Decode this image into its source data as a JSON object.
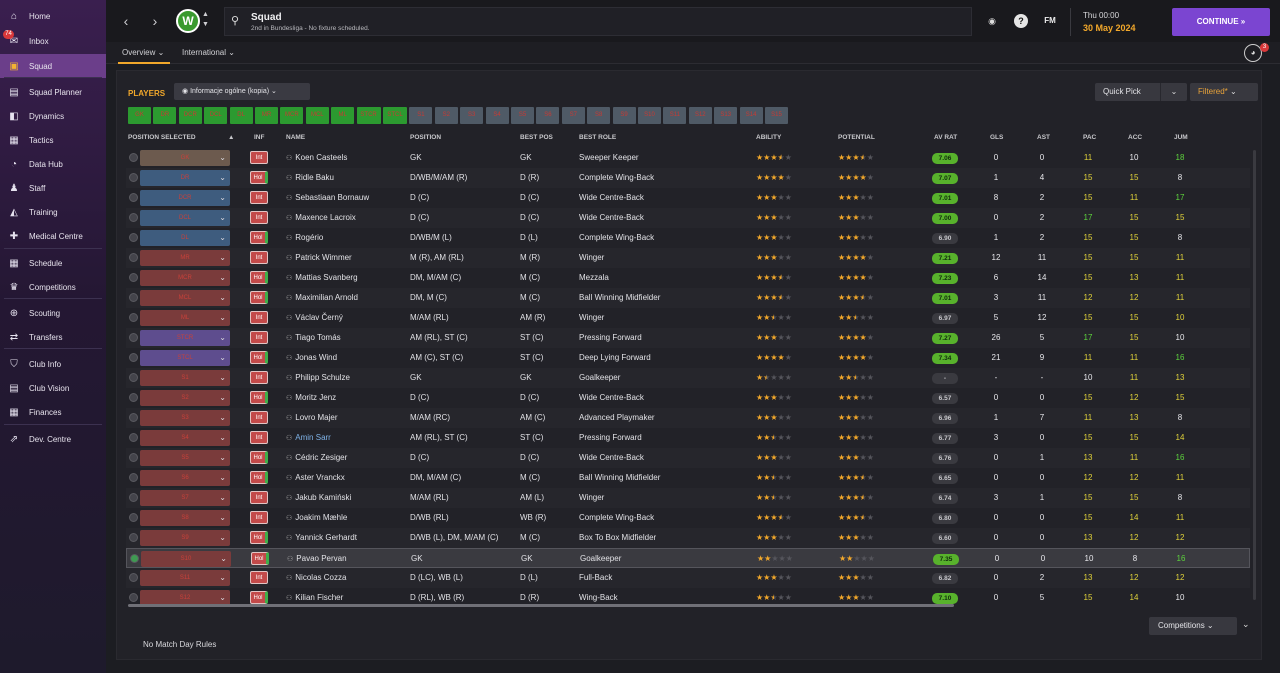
{
  "sidebar": {
    "items": [
      {
        "label": "Home",
        "icon": "home-icon",
        "glyph": "⌂"
      },
      {
        "label": "Inbox",
        "icon": "inbox-icon",
        "glyph": "✉",
        "badge": "74"
      },
      {
        "label": "Squad",
        "icon": "shirt-icon",
        "glyph": "▣",
        "active": true
      },
      {
        "label": "Squad Planner",
        "icon": "clipboard-icon",
        "glyph": "▤"
      },
      {
        "label": "Dynamics",
        "icon": "dynamics-icon",
        "glyph": "◧"
      },
      {
        "label": "Tactics",
        "icon": "tactics-icon",
        "glyph": "▦"
      },
      {
        "label": "Data Hub",
        "icon": "data-hub-icon",
        "glyph": "◔"
      },
      {
        "label": "Staff",
        "icon": "staff-icon",
        "glyph": "♟"
      },
      {
        "label": "Training",
        "icon": "training-icon",
        "glyph": "◭"
      },
      {
        "label": "Medical Centre",
        "icon": "medical-icon",
        "glyph": "✚"
      },
      {
        "label": "Schedule",
        "icon": "calendar-icon",
        "glyph": "▦"
      },
      {
        "label": "Competitions",
        "icon": "trophy-icon",
        "glyph": "♛"
      },
      {
        "label": "Scouting",
        "icon": "scouting-icon",
        "glyph": "⊕"
      },
      {
        "label": "Transfers",
        "icon": "transfers-icon",
        "glyph": "⇄"
      },
      {
        "label": "Club Info",
        "icon": "shield-icon",
        "glyph": "⛉"
      },
      {
        "label": "Club Vision",
        "icon": "vision-icon",
        "glyph": "▤"
      },
      {
        "label": "Finances",
        "icon": "finances-icon",
        "glyph": "▦"
      },
      {
        "label": "Dev. Centre",
        "icon": "dev-centre-icon",
        "glyph": "⇗"
      }
    ]
  },
  "header": {
    "title": "Squad",
    "subtitle": "2nd in Bundesliga - No fixture scheduled.",
    "club_initial": "W",
    "time": "Thu 00:00",
    "date": "30 May 2024",
    "continue": "CONTINUE",
    "fm": "FM",
    "help": "?",
    "notif_count": "3"
  },
  "tabs": {
    "overview": "Overview",
    "international": "International"
  },
  "controls": {
    "players": "PLAYERS",
    "view": "Informacje ogólne (kopia)",
    "quick_pick": "Quick Pick",
    "filtered": "Filtered*",
    "competitions": "Competitions",
    "no_match": "No Match Day Rules"
  },
  "position_chips": [
    {
      "label": "GK",
      "on": true
    },
    {
      "label": "DR",
      "on": true
    },
    {
      "label": "DCR",
      "on": true
    },
    {
      "label": "DCL",
      "on": true
    },
    {
      "label": "DL",
      "on": true
    },
    {
      "label": "MR",
      "on": true
    },
    {
      "label": "MCR",
      "on": true
    },
    {
      "label": "MCL",
      "on": true
    },
    {
      "label": "ML",
      "on": true
    },
    {
      "label": "STCR",
      "on": true
    },
    {
      "label": "STCL",
      "on": true
    },
    {
      "label": "S1",
      "on": false
    },
    {
      "label": "S2",
      "on": false
    },
    {
      "label": "S3",
      "on": false
    },
    {
      "label": "S4",
      "on": false
    },
    {
      "label": "S5",
      "on": false
    },
    {
      "label": "S6",
      "on": false
    },
    {
      "label": "S7",
      "on": false
    },
    {
      "label": "S8",
      "on": false
    },
    {
      "label": "S9",
      "on": false
    },
    {
      "label": "S10",
      "on": false
    },
    {
      "label": "S11",
      "on": false
    },
    {
      "label": "S12",
      "on": false
    },
    {
      "label": "S13",
      "on": false
    },
    {
      "label": "S14",
      "on": false
    },
    {
      "label": "S15",
      "on": false
    }
  ],
  "columns": {
    "pos_sel": "POSITION SELECTED",
    "inf": "INF",
    "name": "NAME",
    "position": "POSITION",
    "best_pos": "BEST POS",
    "best_role": "BEST ROLE",
    "ability": "ABILITY",
    "potential": "POTENTIAL",
    "av_rat": "AV RAT",
    "gls": "GLS",
    "ast": "AST",
    "pac": "PAC",
    "acc": "ACC",
    "jum": "JUM"
  },
  "players": [
    {
      "sel": "GK",
      "selc": "brown",
      "inf": "Int",
      "name": "Koen Casteels",
      "position": "GK",
      "best_pos": "GK",
      "role": "Sweeper Keeper",
      "ability": 3.5,
      "potential": 3.5,
      "av": "7.06",
      "avg": true,
      "gls": "0",
      "ast": "0",
      "pac": "11",
      "acc": "10",
      "jum": "18",
      "pc": "y",
      "ac": "w",
      "jc": "g"
    },
    {
      "sel": "DR",
      "selc": "blue",
      "inf": "Hol",
      "name": "Ridle Baku",
      "position": "D/WB/M/AM (R)",
      "best_pos": "D (R)",
      "role": "Complete Wing-Back",
      "ability": 4,
      "potential": 4,
      "av": "7.07",
      "avg": true,
      "gls": "1",
      "ast": "4",
      "pac": "15",
      "acc": "15",
      "jum": "8",
      "pc": "y",
      "ac": "y",
      "jc": "w"
    },
    {
      "sel": "DCR",
      "selc": "blue",
      "inf": "Int",
      "name": "Sebastiaan Bornauw",
      "position": "D (C)",
      "best_pos": "D (C)",
      "role": "Wide Centre-Back",
      "ability": 3,
      "potential": 3,
      "av": "7.01",
      "avg": true,
      "gls": "8",
      "ast": "2",
      "pac": "15",
      "acc": "11",
      "jum": "17",
      "pc": "y",
      "ac": "y",
      "jc": "g"
    },
    {
      "sel": "DCL",
      "selc": "blue",
      "inf": "Int",
      "name": "Maxence Lacroix",
      "position": "D (C)",
      "best_pos": "D (C)",
      "role": "Wide Centre-Back",
      "ability": 3,
      "potential": 3,
      "av": "7.00",
      "avg": true,
      "gls": "0",
      "ast": "2",
      "pac": "17",
      "acc": "15",
      "jum": "15",
      "pc": "g",
      "ac": "y",
      "jc": "y"
    },
    {
      "sel": "DL",
      "selc": "blue",
      "inf": "Hol",
      "name": "Rogério",
      "position": "D/WB/M (L)",
      "best_pos": "D (L)",
      "role": "Complete Wing-Back",
      "ability": 3,
      "potential": 3,
      "av": "6.90",
      "avg": false,
      "gls": "1",
      "ast": "2",
      "pac": "15",
      "acc": "15",
      "jum": "8",
      "pc": "y",
      "ac": "y",
      "jc": "w"
    },
    {
      "sel": "MR",
      "selc": "red",
      "inf": "Int",
      "name": "Patrick Wimmer",
      "position": "M (R), AM (RL)",
      "best_pos": "M (R)",
      "role": "Winger",
      "ability": 3,
      "potential": 4,
      "av": "7.21",
      "avg": true,
      "gls": "12",
      "ast": "11",
      "pac": "15",
      "acc": "15",
      "jum": "11",
      "pc": "y",
      "ac": "y",
      "jc": "y"
    },
    {
      "sel": "MCR",
      "selc": "red",
      "inf": "Hol",
      "name": "Mattias Svanberg",
      "position": "DM, M/AM (C)",
      "best_pos": "M (C)",
      "role": "Mezzala",
      "ability": 3.5,
      "potential": 4,
      "av": "7.23",
      "avg": true,
      "gls": "6",
      "ast": "14",
      "pac": "15",
      "acc": "13",
      "jum": "11",
      "pc": "y",
      "ac": "y",
      "jc": "y"
    },
    {
      "sel": "MCL",
      "selc": "red",
      "inf": "Hol",
      "name": "Maximilian Arnold",
      "position": "DM, M (C)",
      "best_pos": "M (C)",
      "role": "Ball Winning Midfielder",
      "ability": 3.5,
      "potential": 3.5,
      "av": "7.01",
      "avg": true,
      "gls": "3",
      "ast": "11",
      "pac": "12",
      "acc": "12",
      "jum": "11",
      "pc": "y",
      "ac": "y",
      "jc": "y"
    },
    {
      "sel": "ML",
      "selc": "red",
      "inf": "Int",
      "name": "Václav Černý",
      "position": "M/AM (RL)",
      "best_pos": "AM (R)",
      "role": "Winger",
      "ability": 2.5,
      "potential": 2.5,
      "av": "6.97",
      "avg": false,
      "gls": "5",
      "ast": "12",
      "pac": "15",
      "acc": "15",
      "jum": "10",
      "pc": "y",
      "ac": "y",
      "jc": "y"
    },
    {
      "sel": "STCR",
      "selc": "purple",
      "inf": "Int",
      "name": "Tiago Tomás",
      "position": "AM (RL), ST (C)",
      "best_pos": "ST (C)",
      "role": "Pressing Forward",
      "ability": 3,
      "potential": 4,
      "av": "7.27",
      "avg": true,
      "gls": "26",
      "ast": "5",
      "pac": "17",
      "acc": "15",
      "jum": "10",
      "pc": "g",
      "ac": "y",
      "jc": "w"
    },
    {
      "sel": "STCL",
      "selc": "purple",
      "inf": "Hol",
      "name": "Jonas Wind",
      "position": "AM (C), ST (C)",
      "best_pos": "ST (C)",
      "role": "Deep Lying Forward",
      "ability": 4,
      "potential": 4,
      "av": "7.34",
      "avg": true,
      "gls": "21",
      "ast": "9",
      "pac": "11",
      "acc": "11",
      "jum": "16",
      "pc": "y",
      "ac": "y",
      "jc": "g"
    },
    {
      "sel": "S1",
      "selc": "red",
      "inf": "Int",
      "name": "Philipp Schulze",
      "position": "GK",
      "best_pos": "GK",
      "role": "Goalkeeper",
      "ability": 1.5,
      "potential": 2.5,
      "av": "-",
      "avg": false,
      "gls": "-",
      "ast": "-",
      "pac": "10",
      "acc": "11",
      "jum": "13",
      "pc": "w",
      "ac": "y",
      "jc": "y"
    },
    {
      "sel": "S2",
      "selc": "red",
      "inf": "Hol",
      "name": "Moritz Jenz",
      "position": "D (C)",
      "best_pos": "D (C)",
      "role": "Wide Centre-Back",
      "ability": 3,
      "potential": 3,
      "av": "6.57",
      "avg": false,
      "gls": "0",
      "ast": "0",
      "pac": "15",
      "acc": "12",
      "jum": "15",
      "pc": "y",
      "ac": "y",
      "jc": "y"
    },
    {
      "sel": "S3",
      "selc": "red",
      "inf": "Int",
      "name": "Lovro Majer",
      "position": "M/AM (RC)",
      "best_pos": "AM (C)",
      "role": "Advanced Playmaker",
      "ability": 3,
      "potential": 3,
      "av": "6.96",
      "avg": false,
      "gls": "1",
      "ast": "7",
      "pac": "11",
      "acc": "13",
      "jum": "8",
      "pc": "y",
      "ac": "y",
      "jc": "w"
    },
    {
      "sel": "S4",
      "selc": "red",
      "inf": "Int",
      "name": "Amin Sarr",
      "position": "AM (RL), ST (C)",
      "best_pos": "ST (C)",
      "role": "Pressing Forward",
      "ability": 2.5,
      "potential": 3,
      "av": "6.77",
      "avg": false,
      "gls": "3",
      "ast": "0",
      "pac": "15",
      "acc": "15",
      "jum": "14",
      "pc": "y",
      "ac": "y",
      "jc": "y",
      "loan": true
    },
    {
      "sel": "S5",
      "selc": "red",
      "inf": "Hol",
      "name": "Cédric Zesiger",
      "position": "D (C)",
      "best_pos": "D (C)",
      "role": "Wide Centre-Back",
      "ability": 3,
      "potential": 3,
      "av": "6.76",
      "avg": false,
      "gls": "0",
      "ast": "1",
      "pac": "13",
      "acc": "11",
      "jum": "16",
      "pc": "y",
      "ac": "y",
      "jc": "g"
    },
    {
      "sel": "S6",
      "selc": "red",
      "inf": "Hol",
      "name": "Aster Vranckx",
      "position": "DM, M/AM (C)",
      "best_pos": "M (C)",
      "role": "Ball Winning Midfielder",
      "ability": 2.5,
      "potential": 3.5,
      "av": "6.65",
      "avg": false,
      "gls": "0",
      "ast": "0",
      "pac": "12",
      "acc": "12",
      "jum": "11",
      "pc": "y",
      "ac": "y",
      "jc": "y"
    },
    {
      "sel": "S7",
      "selc": "red",
      "inf": "Int",
      "name": "Jakub Kamiński",
      "position": "M/AM (RL)",
      "best_pos": "AM (L)",
      "role": "Winger",
      "ability": 2.5,
      "potential": 3.5,
      "av": "6.74",
      "avg": false,
      "gls": "3",
      "ast": "1",
      "pac": "15",
      "acc": "15",
      "jum": "8",
      "pc": "y",
      "ac": "y",
      "jc": "w"
    },
    {
      "sel": "S8",
      "selc": "red",
      "inf": "Int",
      "name": "Joakim Mæhle",
      "position": "D/WB (RL)",
      "best_pos": "WB (R)",
      "role": "Complete Wing-Back",
      "ability": 3.5,
      "potential": 3.5,
      "av": "6.80",
      "avg": false,
      "gls": "0",
      "ast": "0",
      "pac": "15",
      "acc": "14",
      "jum": "11",
      "pc": "y",
      "ac": "y",
      "jc": "y"
    },
    {
      "sel": "S9",
      "selc": "red",
      "inf": "Hol",
      "name": "Yannick Gerhardt",
      "position": "D/WB (L), DM, M/AM (C)",
      "best_pos": "M (C)",
      "role": "Box To Box Midfielder",
      "ability": 3,
      "potential": 3,
      "av": "6.60",
      "avg": false,
      "gls": "0",
      "ast": "0",
      "pac": "13",
      "acc": "12",
      "jum": "12",
      "pc": "y",
      "ac": "y",
      "jc": "y"
    },
    {
      "sel": "S10",
      "selc": "red",
      "inf": "Hol",
      "name": "Pavao Pervan",
      "position": "GK",
      "best_pos": "GK",
      "role": "Goalkeeper",
      "ability": 2,
      "potential": 2,
      "av": "7.35",
      "avg": true,
      "gls": "0",
      "ast": "0",
      "pac": "10",
      "acc": "8",
      "jum": "16",
      "pc": "w",
      "ac": "w",
      "jc": "g",
      "selected": true
    },
    {
      "sel": "S11",
      "selc": "red",
      "inf": "Int",
      "name": "Nicolas Cozza",
      "position": "D (LC), WB (L)",
      "best_pos": "D (L)",
      "role": "Full-Back",
      "ability": 3,
      "potential": 3,
      "av": "6.82",
      "avg": false,
      "gls": "0",
      "ast": "2",
      "pac": "13",
      "acc": "12",
      "jum": "12",
      "pc": "y",
      "ac": "y",
      "jc": "y"
    },
    {
      "sel": "S12",
      "selc": "red",
      "inf": "Hol",
      "name": "Kilian Fischer",
      "position": "D (RL), WB (R)",
      "best_pos": "D (R)",
      "role": "Wing-Back",
      "ability": 2.5,
      "potential": 3,
      "av": "7.10",
      "avg": true,
      "gls": "0",
      "ast": "5",
      "pac": "15",
      "acc": "14",
      "jum": "10",
      "pc": "y",
      "ac": "y",
      "jc": "w"
    }
  ],
  "colors": {
    "accent": "#f2a82b",
    "continue": "#7b45d1",
    "star": "#f2a82b",
    "star_white": "#ffffff",
    "star_empty": "#55555c"
  }
}
